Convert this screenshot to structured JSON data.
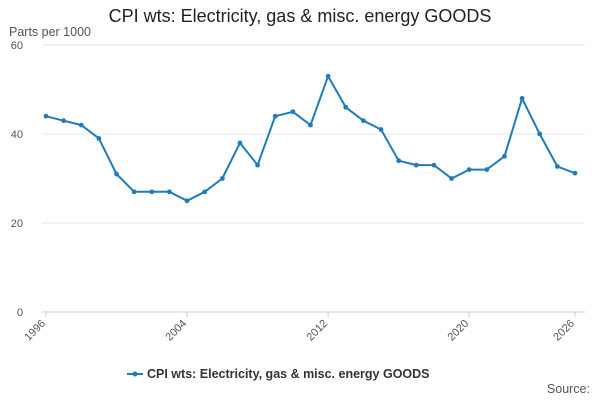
{
  "chart_data": {
    "type": "line",
    "title": "CPI wts: Electricity, gas & misc. energy GOODS",
    "ylabel": "Parts per 1000",
    "xlabel": "",
    "source_label": "Source:",
    "ylim": [
      0,
      60
    ],
    "yticks": [
      0,
      20,
      40,
      60
    ],
    "xlim": [
      1996,
      2026
    ],
    "xticks": [
      "1996",
      "2004",
      "2012",
      "2020",
      "2026"
    ],
    "grid": true,
    "legend_position": "bottom",
    "series": [
      {
        "name": "CPI wts: Electricity, gas & misc. energy GOODS",
        "color": "#1f7cb8",
        "x": [
          1996,
          1997,
          1998,
          1999,
          2000,
          2001,
          2002,
          2003,
          2004,
          2005,
          2006,
          2007,
          2008,
          2009,
          2010,
          2011,
          2012,
          2013,
          2014,
          2015,
          2016,
          2017,
          2018,
          2019,
          2020,
          2021,
          2022,
          2023,
          2024,
          2025,
          2026
        ],
        "values": [
          44,
          43,
          42,
          39,
          31,
          27,
          27,
          27,
          25,
          27,
          30,
          38,
          33,
          44,
          45,
          42,
          53,
          46,
          43,
          41,
          34,
          33,
          33,
          30,
          32,
          32,
          35,
          48,
          40,
          32.7,
          31.2
        ]
      }
    ]
  }
}
